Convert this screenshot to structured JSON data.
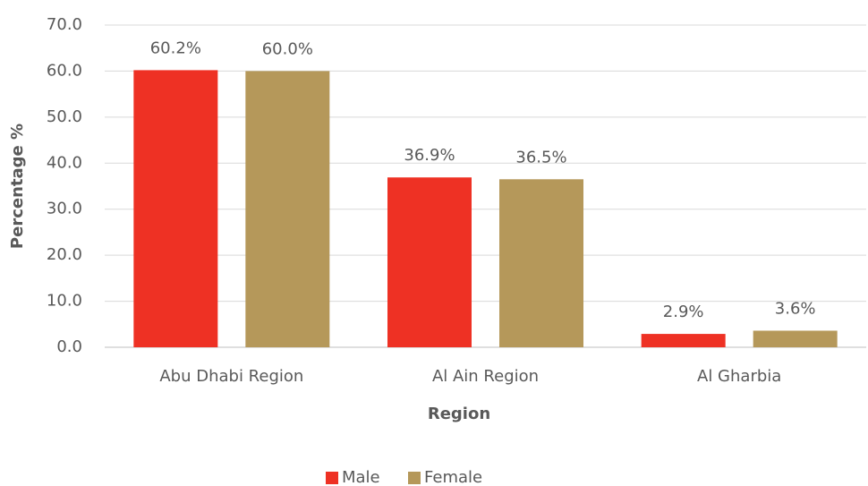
{
  "chart_data": {
    "type": "bar",
    "x_label": "Region",
    "y_label": "Percentage %",
    "categories": [
      "Abu Dhabi Region",
      "Al Ain Region",
      "Al Gharbia"
    ],
    "series": [
      {
        "name": "Male",
        "color": "#ee3124",
        "values": [
          60.2,
          36.9,
          2.9
        ],
        "value_labels": [
          "60.2%",
          "36.9%",
          "2.9%"
        ]
      },
      {
        "name": "Female",
        "color": "#b5985a",
        "values": [
          60.0,
          36.5,
          3.6
        ],
        "value_labels": [
          "60.0%",
          "36.5%",
          "3.6%"
        ]
      }
    ],
    "ylim": [
      0,
      70
    ],
    "yticks": [
      {
        "value": 0,
        "label": "0.0"
      },
      {
        "value": 10,
        "label": "10.0"
      },
      {
        "value": 20,
        "label": "20.0"
      },
      {
        "value": 30,
        "label": "30.0"
      },
      {
        "value": 40,
        "label": "40.0"
      },
      {
        "value": 50,
        "label": "50.0"
      },
      {
        "value": 60,
        "label": "60.0"
      },
      {
        "value": 70,
        "label": "70.0"
      }
    ],
    "grid": true,
    "legend": "bottom"
  }
}
